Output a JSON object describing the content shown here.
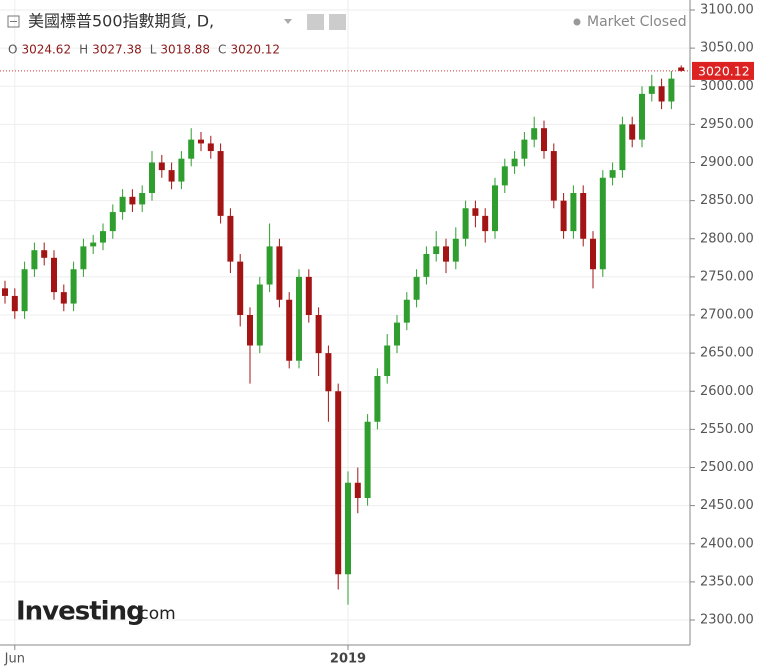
{
  "chart_data": {
    "type": "candlestick",
    "title": "美國標普500指數期貨, D,",
    "status": "Market Closed",
    "brand": "Investing",
    "brand_suffix": ".com",
    "ohlc_labels": [
      "O",
      "H",
      "L",
      "C"
    ],
    "up_color": "#2f9e2f",
    "down_color": "#a31515",
    "categories": [
      null,
      "Jun",
      null,
      null,
      null,
      null,
      null,
      null,
      null,
      null,
      null,
      null,
      null,
      null,
      null,
      null,
      null,
      null,
      null,
      null,
      null,
      null,
      null,
      null,
      null,
      null,
      null,
      null,
      null,
      null,
      null,
      null,
      null,
      null,
      null,
      "2019",
      null,
      null,
      null,
      null,
      null,
      null,
      null,
      null,
      null,
      null,
      null,
      null,
      null,
      null,
      null,
      null,
      null,
      null,
      null,
      null,
      null,
      null,
      null,
      null,
      null,
      null,
      null,
      null,
      null,
      null,
      null,
      null,
      null,
      null
    ],
    "open": [
      2735,
      2725,
      2705,
      2760,
      2785,
      2775,
      2730,
      2715,
      2760,
      2790,
      2795,
      2810,
      2835,
      2855,
      2845,
      2860,
      2900,
      2890,
      2875,
      2905,
      2930,
      2925,
      2915,
      2830,
      2770,
      2700,
      2660,
      2740,
      2790,
      2720,
      2640,
      2750,
      2700,
      2650,
      2600,
      2360,
      2480,
      2460,
      2560,
      2620,
      2660,
      2690,
      2720,
      2750,
      2780,
      2790,
      2770,
      2800,
      2840,
      2830,
      2810,
      2870,
      2895,
      2905,
      2930,
      2945,
      2915,
      2850,
      2810,
      2860,
      2800,
      2760,
      2880,
      2890,
      2950,
      2930,
      2990,
      3000,
      2980,
      3024.62
    ],
    "high": [
      2745,
      2735,
      2770,
      2795,
      2795,
      2785,
      2740,
      2770,
      2800,
      2805,
      2820,
      2845,
      2865,
      2865,
      2870,
      2915,
      2910,
      2900,
      2915,
      2945,
      2940,
      2935,
      2925,
      2840,
      2780,
      2710,
      2750,
      2820,
      2800,
      2730,
      2760,
      2760,
      2710,
      2660,
      2610,
      2495,
      2500,
      2570,
      2630,
      2675,
      2700,
      2730,
      2760,
      2790,
      2810,
      2800,
      2815,
      2850,
      2850,
      2840,
      2880,
      2905,
      2915,
      2940,
      2960,
      2955,
      2925,
      2860,
      2870,
      2870,
      2810,
      2890,
      2900,
      2960,
      2960,
      3000,
      3015,
      3010,
      3020,
      3027.38
    ],
    "low": [
      2715,
      2695,
      2695,
      2750,
      2765,
      2720,
      2705,
      2705,
      2750,
      2780,
      2785,
      2800,
      2825,
      2835,
      2835,
      2850,
      2880,
      2865,
      2865,
      2895,
      2915,
      2905,
      2820,
      2755,
      2685,
      2610,
      2650,
      2730,
      2710,
      2630,
      2630,
      2690,
      2620,
      2560,
      2340,
      2320,
      2440,
      2450,
      2550,
      2610,
      2650,
      2680,
      2710,
      2740,
      2770,
      2755,
      2760,
      2790,
      2815,
      2795,
      2800,
      2860,
      2885,
      2895,
      2920,
      2905,
      2840,
      2800,
      2800,
      2790,
      2735,
      2750,
      2870,
      2880,
      2920,
      2920,
      2980,
      2970,
      2970,
      3018.88
    ],
    "close": [
      2725,
      2705,
      2760,
      2785,
      2775,
      2730,
      2715,
      2760,
      2790,
      2795,
      2810,
      2835,
      2855,
      2845,
      2860,
      2900,
      2890,
      2875,
      2905,
      2930,
      2925,
      2915,
      2830,
      2770,
      2700,
      2660,
      2740,
      2790,
      2720,
      2640,
      2750,
      2700,
      2650,
      2600,
      2360,
      2480,
      2460,
      2560,
      2620,
      2660,
      2690,
      2720,
      2750,
      2780,
      2790,
      2770,
      2800,
      2840,
      2830,
      2810,
      2870,
      2895,
      2905,
      2930,
      2945,
      2915,
      2850,
      2810,
      2860,
      2800,
      2760,
      2880,
      2890,
      2950,
      2930,
      2990,
      3000,
      2980,
      3010,
      3020.12
    ],
    "ylim": [
      2300,
      3100
    ],
    "yticks": [
      {
        "value": 2300,
        "label": "2300.00"
      },
      {
        "value": 2350,
        "label": "2350.00"
      },
      {
        "value": 2400,
        "label": "2400.00"
      },
      {
        "value": 2450,
        "label": "2450.00"
      },
      {
        "value": 2500,
        "label": "2500.00"
      },
      {
        "value": 2550,
        "label": "2550.00"
      },
      {
        "value": 2600,
        "label": "2600.00"
      },
      {
        "value": 2650,
        "label": "2650.00"
      },
      {
        "value": 2700,
        "label": "2700.00"
      },
      {
        "value": 2750,
        "label": "2750.00"
      },
      {
        "value": 2800,
        "label": "2800.00"
      },
      {
        "value": 2850,
        "label": "2850.00"
      },
      {
        "value": 2900,
        "label": "2900.00"
      },
      {
        "value": 2950,
        "label": "2950.00"
      },
      {
        "value": 3000,
        "label": "3000.00"
      },
      {
        "value": 3050,
        "label": "3050.00"
      },
      {
        "value": 3100,
        "label": "3100.00"
      }
    ],
    "grid": true
  }
}
